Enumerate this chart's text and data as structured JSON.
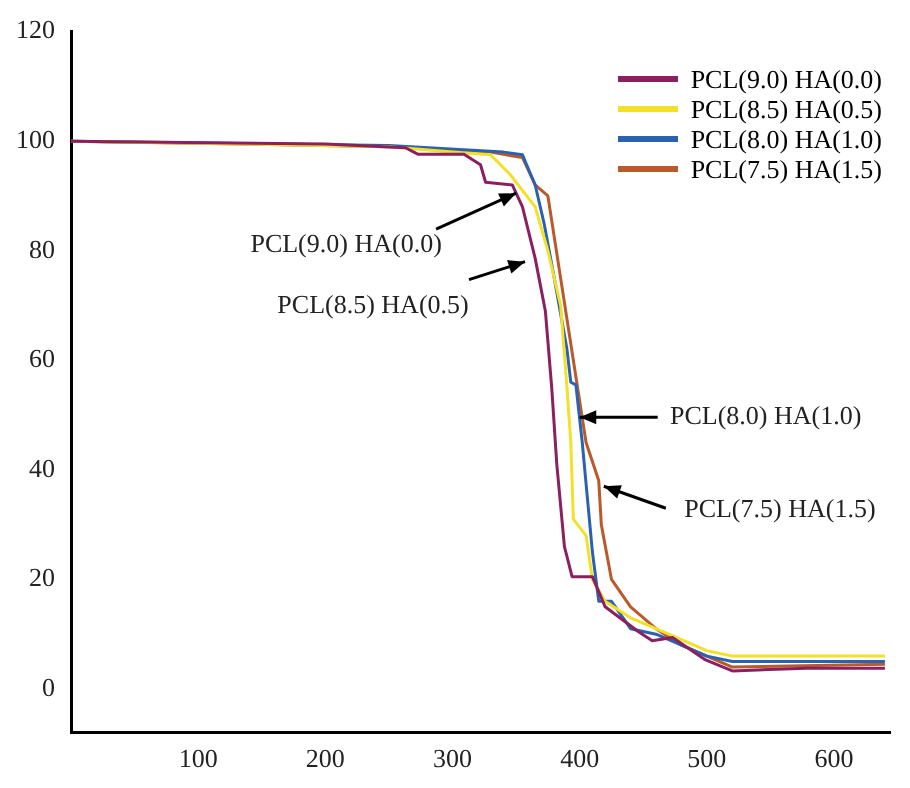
{
  "chart_data": {
    "type": "line",
    "xlim": [
      0,
      644
    ],
    "ylim": [
      -8,
      120
    ],
    "xticks": [
      100,
      200,
      300,
      400,
      500,
      600
    ],
    "yticks": [
      0,
      20,
      40,
      60,
      80,
      100,
      120
    ],
    "grid": false,
    "legend": "top right",
    "marker": "none",
    "line_style": "solid",
    "series": [
      {
        "name": "PCL(9.0) HA(0.0)",
        "color": "#8a2060",
        "x": [
          0,
          200,
          263,
          273,
          309,
          322,
          326,
          347,
          355,
          365,
          373,
          378,
          382,
          388,
          394,
          410,
          420,
          446,
          457,
          473,
          499,
          520,
          578,
          640
        ],
        "values": [
          100,
          99.5,
          98.8,
          97.6,
          97.6,
          95.7,
          92.5,
          92,
          88,
          78.6,
          69,
          55,
          41,
          26,
          20.5,
          20.5,
          15,
          10.5,
          8.8,
          9.4,
          5.3,
          3.3,
          3.8,
          3.8
        ]
      },
      {
        "name": "PCL(8.5) HA(0.5)",
        "color": "#f2e02a",
        "x": [
          0,
          250,
          300,
          330,
          345,
          365,
          375,
          385,
          390,
          393,
          395,
          405,
          410,
          420,
          440,
          460,
          500,
          520,
          640
        ],
        "values": [
          100,
          99,
          98,
          97.5,
          94,
          88,
          80,
          70,
          55,
          45,
          31,
          28,
          20,
          16,
          13,
          11,
          7,
          6,
          6
        ]
      },
      {
        "name": "PCL(8.0) HA(1.0)",
        "color": "#2b62b0",
        "x": [
          0,
          250,
          340,
          355,
          365,
          372,
          380,
          390,
          393,
          397,
          402,
          410,
          415,
          425,
          440,
          460,
          480,
          500,
          520,
          640
        ],
        "values": [
          100,
          99.2,
          98,
          97.5,
          92,
          85,
          75,
          62,
          56,
          55.5,
          45,
          25,
          16,
          16,
          11,
          10,
          8,
          6,
          5,
          5
        ]
      },
      {
        "name": "PCL(7.5) HA(1.5)",
        "color": "#b85a2a",
        "x": [
          0,
          250,
          330,
          355,
          365,
          375,
          385,
          395,
          405,
          415,
          417,
          425,
          440,
          460,
          480,
          500,
          520,
          640
        ],
        "values": [
          100,
          99,
          98,
          97,
          92,
          90,
          75,
          60,
          45,
          38,
          30,
          20,
          15,
          11,
          8,
          6,
          4,
          4.5
        ]
      }
    ],
    "annotations": [
      {
        "text": "PCL(9.0) HA(0.0)",
        "x": 350,
        "y": 90.5
      },
      {
        "text": "PCL(8.5) HA(0.5)",
        "x": 357,
        "y": 78
      },
      {
        "text": "PCL(8.0) HA(1.0)",
        "x": 400,
        "y": 49.6
      },
      {
        "text": "PCL(7.5) HA(1.5)",
        "x": 419,
        "y": 37
      }
    ]
  }
}
